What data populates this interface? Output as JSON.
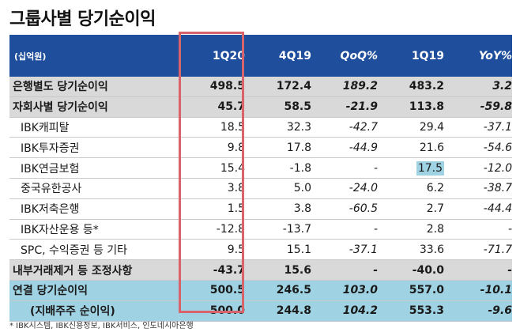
{
  "title": "그룹사별 당기순이익",
  "table": {
    "unit_label": "(십억원)",
    "columns": [
      "1Q20",
      "4Q19",
      "QoQ%",
      "1Q19",
      "YoY%"
    ],
    "rows": [
      {
        "label": "은행별도 당기순이익",
        "values": [
          "498.5",
          "172.4",
          "189.2",
          "483.2",
          "3.2"
        ]
      },
      {
        "label": "자회사별 당기순이익",
        "values": [
          "45.7",
          "58.5",
          "-21.9",
          "113.8",
          "-59.8"
        ]
      },
      {
        "label": "IBK캐피탈",
        "values": [
          "18.5",
          "32.3",
          "-42.7",
          "29.4",
          "-37.1"
        ]
      },
      {
        "label": "IBK투자증권",
        "values": [
          "9.8",
          "17.8",
          "-44.9",
          "21.6",
          "-54.6"
        ]
      },
      {
        "label": "IBK연금보험",
        "values": [
          "15.4",
          "-1.8",
          "-",
          "17.5",
          "-12.0"
        ]
      },
      {
        "label": "중국유한공사",
        "values": [
          "3.8",
          "5.0",
          "-24.0",
          "6.2",
          "-38.7"
        ]
      },
      {
        "label": "IBK저축은행",
        "values": [
          "1.5",
          "3.8",
          "-60.5",
          "2.7",
          "-44.4"
        ]
      },
      {
        "label": "IBK자산운용 등*",
        "values": [
          "-12.8",
          "-13.7",
          "-",
          "2.8",
          "-"
        ]
      },
      {
        "label": "SPC, 수익증권 등 기타",
        "values": [
          "9.5",
          "15.1",
          "-37.1",
          "33.6",
          "-71.7"
        ]
      },
      {
        "label": "내부거래제거 등 조정사항",
        "values": [
          "-43.7",
          "15.6",
          "-",
          "-40.0",
          "-"
        ]
      },
      {
        "label": "연결 당기순이익",
        "values": [
          "500.5",
          "246.5",
          "103.0",
          "557.0",
          "-10.1"
        ]
      },
      {
        "label": "(지배주주 순이익)",
        "values": [
          "500.0",
          "244.8",
          "104.2",
          "553.3",
          "-9.6"
        ]
      }
    ]
  },
  "footnote": "* IBK시스템, IBK신용정보, IBK서비스, 인도네시아은행",
  "colors": {
    "header": "#1f4e9c",
    "gray_row": "#d9d9d9",
    "blue_row": "#9fd3e3",
    "frame": "#d9636a"
  }
}
